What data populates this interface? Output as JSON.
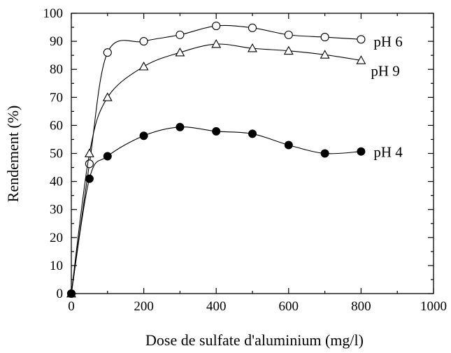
{
  "chart_data": {
    "type": "line",
    "xlabel": "Dose de sulfate d'aluminium (mg/l)",
    "ylabel": "Rendement (%)",
    "xlim": [
      0,
      1000
    ],
    "ylim": [
      0,
      100
    ],
    "x_ticks": [
      0,
      200,
      400,
      600,
      800,
      1000
    ],
    "y_ticks": [
      0,
      10,
      20,
      30,
      40,
      50,
      60,
      70,
      80,
      90,
      100
    ],
    "x_tick_labels": [
      "0",
      "200",
      "400",
      "600",
      "800",
      "1000"
    ],
    "y_tick_labels": [
      "0",
      "10",
      "20",
      "30",
      "40",
      "50",
      "60",
      "70",
      "80",
      "90",
      "100"
    ],
    "grid": false,
    "legend": "inline labels at line ends",
    "series": [
      {
        "name": "pH 6",
        "marker": "open-circle",
        "x": [
          0,
          50,
          100,
          200,
          300,
          400,
          500,
          600,
          700,
          800
        ],
        "values": [
          0,
          46.3,
          86,
          90,
          92.3,
          95.5,
          94.8,
          92.3,
          91.5,
          90.7
        ]
      },
      {
        "name": "pH 9",
        "marker": "open-triangle",
        "x": [
          0,
          50,
          100,
          200,
          300,
          400,
          500,
          600,
          700,
          800
        ],
        "values": [
          0,
          50,
          70,
          81,
          86,
          89,
          87.5,
          86.6,
          85.2,
          83.2
        ]
      },
      {
        "name": "pH 4",
        "marker": "filled-circle",
        "x": [
          0,
          50,
          100,
          200,
          300,
          400,
          500,
          600,
          700,
          800
        ],
        "values": [
          0,
          41,
          49,
          56.3,
          59.4,
          57.9,
          57,
          53,
          50,
          50.7
        ]
      }
    ]
  }
}
